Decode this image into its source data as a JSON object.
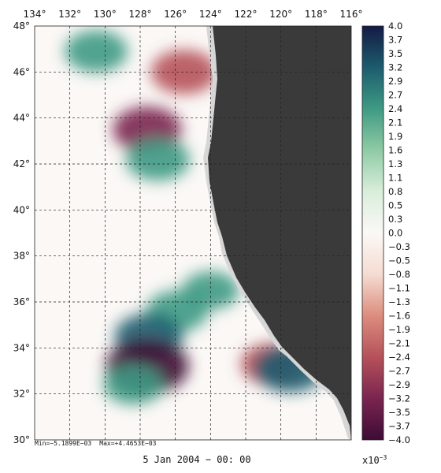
{
  "lon_ticks": [
    "134°",
    "132°",
    "130°",
    "128°",
    "126°",
    "124°",
    "122°",
    "120°",
    "118°",
    "116°"
  ],
  "lat_ticks": [
    "48°",
    "46°",
    "44°",
    "42°",
    "40°",
    "38°",
    "36°",
    "34°",
    "32°",
    "30°"
  ],
  "colorbar_ticks": [
    "4.0",
    "3.7",
    "3.5",
    "3.2",
    "2.9",
    "2.7",
    "2.4",
    "2.1",
    "1.9",
    "1.6",
    "1.3",
    "1.1",
    "0.8",
    "0.5",
    "0.3",
    "0.0",
    "−0.3",
    "−0.5",
    "−0.8",
    "−1.1",
    "−1.3",
    "−1.6",
    "−1.9",
    "−2.1",
    "−2.4",
    "−2.7",
    "−2.9",
    "−3.2",
    "−3.5",
    "−3.7",
    "−4.0"
  ],
  "stats": {
    "min": "Min=−5.1899E−03",
    "max": "Max=+4.4653E−03"
  },
  "date": "5 Jan 2004 − 00: 00",
  "scale": {
    "base": "x10",
    "exp": "−3"
  },
  "colors": {
    "land": "#3a3a3a",
    "coast_mask": "#d6d6d6",
    "colormap": [
      "#3d0c35",
      "#7a2450",
      "#b5515a",
      "#dc8d7e",
      "#f5dcd2",
      "#fbf8f6",
      "#d9eedb",
      "#8fcba4",
      "#3f9a84",
      "#1c5c6e",
      "#141a44"
    ]
  },
  "field_features": [
    {
      "lon": 127.6,
      "lat": 43.5,
      "value": -3.0
    },
    {
      "lon": 125.5,
      "lat": 46.0,
      "value": -2.8
    },
    {
      "lon": 127.0,
      "lat": 42.2,
      "value": 2.6
    },
    {
      "lon": 130.5,
      "lat": 46.9,
      "value": 2.5
    },
    {
      "lon": 125.9,
      "lat": 35.6,
      "value": 2.4
    },
    {
      "lon": 127.5,
      "lat": 34.5,
      "value": 3.0
    },
    {
      "lon": 127.6,
      "lat": 33.2,
      "value": -4.2
    },
    {
      "lon": 128.4,
      "lat": 32.4,
      "value": 2.2
    },
    {
      "lon": 120.5,
      "lat": 33.3,
      "value": -2.5
    },
    {
      "lon": 119.5,
      "lat": 33.1,
      "value": 3.2
    },
    {
      "lon": 124.0,
      "lat": 36.5,
      "value": 2.0
    }
  ]
}
